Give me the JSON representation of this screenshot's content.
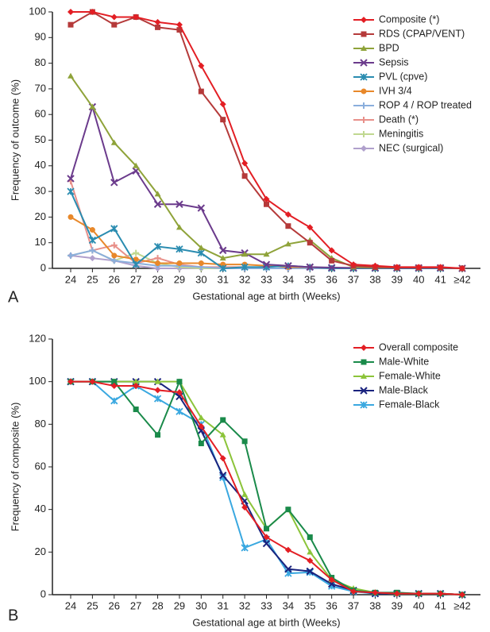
{
  "chart_data": [
    {
      "type": "line",
      "panel_label": "A",
      "x_label": "Gestational age at birth (Weeks)",
      "y_label": "Frequency of outcome (%)",
      "categories": [
        "24",
        "25",
        "26",
        "27",
        "28",
        "29",
        "30",
        "31",
        "32",
        "33",
        "34",
        "35",
        "36",
        "37",
        "38",
        "39",
        "40",
        "41",
        "≥42"
      ],
      "ylim": [
        0,
        100
      ],
      "yticks": [
        0,
        10,
        20,
        30,
        40,
        50,
        60,
        70,
        80,
        90,
        100
      ],
      "grid": false,
      "legend": "upper right",
      "series": [
        {
          "name": "Composite (*)",
          "color": "#e31e24",
          "marker": "diamond",
          "values": [
            100,
            100,
            98,
            98,
            96,
            95,
            79,
            64,
            41,
            27,
            21,
            16,
            7,
            1.5,
            1,
            0.5,
            0.5,
            0.5,
            0
          ]
        },
        {
          "name": "RDS (CPAP/VENT)",
          "color": "#b53a3a",
          "marker": "square",
          "values": [
            95,
            100,
            95,
            98,
            94,
            93,
            69,
            58,
            36,
            25,
            16.5,
            10,
            3,
            1,
            0.5,
            0.3,
            0.3,
            0.3,
            0
          ]
        },
        {
          "name": "BPD",
          "color": "#8fa33a",
          "marker": "triangle",
          "values": [
            75,
            63,
            49,
            40,
            29,
            16,
            8,
            4,
            5.5,
            5.5,
            9.5,
            11,
            4,
            0.5,
            0.3,
            0.3,
            0.3,
            0.3,
            0
          ]
        },
        {
          "name": "Sepsis",
          "color": "#6b3b8c",
          "marker": "x",
          "values": [
            35,
            63,
            33.5,
            38,
            25,
            25,
            23.5,
            7,
            6,
            1.5,
            1,
            0.5,
            0.3,
            0.2,
            0.2,
            0.2,
            0.2,
            0.2,
            0
          ]
        },
        {
          "name": "PVL (cpve)",
          "color": "#2a8cb0",
          "marker": "asterisk",
          "values": [
            30,
            11,
            15.5,
            1.5,
            8.5,
            7.5,
            6,
            0,
            0.5,
            0.5,
            1,
            0.5,
            0,
            0,
            0,
            0,
            0,
            0,
            0
          ]
        },
        {
          "name": "IVH 3/4",
          "color": "#e8882a",
          "marker": "circle",
          "values": [
            20,
            15,
            5,
            3.5,
            2,
            2,
            2,
            1.5,
            1.5,
            1,
            0.5,
            0.5,
            0,
            0,
            0,
            0,
            0,
            0,
            0
          ]
        },
        {
          "name": "ROP 4 / ROP treated",
          "color": "#8aaedc",
          "marker": "plus",
          "values": [
            5,
            7,
            3,
            2,
            1,
            1,
            0.5,
            0,
            0,
            0,
            0,
            0,
            0,
            0,
            0,
            0,
            0,
            0,
            0
          ]
        },
        {
          "name": "Death (*)",
          "color": "#e8908a",
          "marker": "plus",
          "values": [
            34,
            7,
            9,
            2,
            4,
            1.5,
            0.5,
            0.5,
            0.5,
            0,
            0,
            0,
            0,
            0,
            0,
            0,
            0,
            0,
            0
          ]
        },
        {
          "name": "Meningitis",
          "color": "#c0d890",
          "marker": "plus",
          "values": [
            5,
            7,
            3,
            6,
            2,
            0.5,
            0,
            0,
            0,
            0,
            0,
            0,
            0,
            0,
            0,
            0,
            0,
            0,
            0
          ]
        },
        {
          "name": "NEC (surgical)",
          "color": "#b0a0cc",
          "marker": "diamond",
          "values": [
            5,
            4,
            3,
            1,
            0,
            0,
            0,
            0,
            0,
            0,
            0,
            0,
            0,
            0,
            0,
            0,
            0,
            0,
            0
          ]
        }
      ]
    },
    {
      "type": "line",
      "panel_label": "B",
      "x_label": "Gestational age at birth (Weeks)",
      "y_label": "Frequency of composite (%)",
      "categories": [
        "24",
        "25",
        "26",
        "27",
        "28",
        "29",
        "30",
        "31",
        "32",
        "33",
        "34",
        "35",
        "36",
        "37",
        "38",
        "39",
        "40",
        "41",
        "≥42"
      ],
      "ylim": [
        0,
        120
      ],
      "yticks": [
        0,
        20,
        40,
        60,
        80,
        100,
        120
      ],
      "grid": false,
      "legend": "upper right",
      "series": [
        {
          "name": "Overall composite",
          "color": "#e31e24",
          "marker": "diamond",
          "values": [
            100,
            100,
            98,
            98,
            96,
            95,
            79,
            64,
            41,
            27,
            21,
            16,
            7,
            1.5,
            1,
            0.5,
            0.5,
            0.5,
            0
          ]
        },
        {
          "name": "Male-White",
          "color": "#1a8a4a",
          "marker": "square",
          "values": [
            100,
            100,
            100,
            87,
            75,
            100,
            71,
            82,
            72,
            31,
            40,
            27,
            8,
            2,
            1,
            1,
            0.5,
            0.5,
            0
          ]
        },
        {
          "name": "Female-White",
          "color": "#8cc43a",
          "marker": "triangle",
          "values": [
            100,
            100,
            100,
            100,
            100,
            100,
            83,
            75,
            47,
            31,
            40,
            20,
            7,
            3,
            1,
            0.5,
            0.5,
            0.5,
            0
          ]
        },
        {
          "name": "Male-Black",
          "color": "#1a237e",
          "marker": "x",
          "values": [
            100,
            100,
            100,
            100,
            100,
            93,
            77,
            56,
            44,
            24,
            12,
            11,
            5,
            2,
            0.5,
            0.5,
            0.5,
            0.5,
            0
          ]
        },
        {
          "name": "Female-Black",
          "color": "#3aa8e0",
          "marker": "asterisk",
          "values": [
            100,
            100,
            91,
            98,
            92,
            86,
            80,
            55,
            22,
            26,
            10,
            10.5,
            4,
            1.5,
            0.5,
            0.5,
            0.5,
            0.5,
            0
          ]
        }
      ]
    }
  ]
}
